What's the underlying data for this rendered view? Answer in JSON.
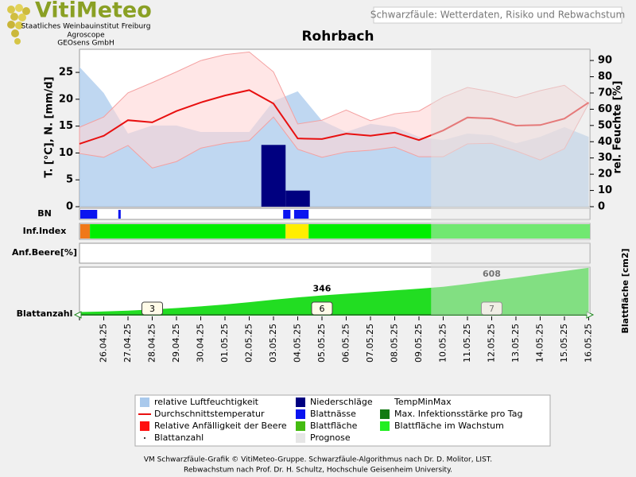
{
  "header": {
    "logo": "VitiMeteo",
    "lines": [
      "Staatliches Weinbauinstitut Freiburg",
      "Agroscope",
      "GEOsens GmbH"
    ],
    "subtitle": "Schwarzfäule: Wetterdaten, Risiko und Rebwachstum"
  },
  "chart_data": [
    {
      "type": "combo",
      "title": "Rohrbach",
      "categories": [
        null,
        "26.04.25",
        "27.04.25",
        "28.04.25",
        "29.04.25",
        "30.04.25",
        "01.05.25",
        "02.05.25",
        "03.05.25",
        "04.05.25",
        "05.05.25",
        "06.05.25",
        "07.05.25",
        "08.05.25",
        "09.05.25",
        "10.05.25",
        "11.05.25",
        "12.05.25",
        "13.05.25",
        "14.05.25",
        "15.05.25",
        "16.05.25"
      ],
      "xlim": [
        0,
        21.05
      ],
      "ylabel": "T. [°C], N. [mm/d]",
      "ylim": [
        0,
        29.3
      ],
      "yticks": [
        0,
        5,
        10,
        15,
        20,
        25
      ],
      "y2label": "rel. Feuchte [%]",
      "y2lim": [
        0,
        96.9
      ],
      "y2ticks": [
        0,
        10,
        20,
        30,
        40,
        50,
        60,
        70,
        80,
        90
      ],
      "humidity": {
        "color": "#a9c9ec",
        "axis": "y2",
        "values": [
          86,
          70,
          45,
          50,
          50,
          46,
          46,
          46,
          65,
          71,
          53,
          46,
          51,
          49,
          43,
          41,
          45,
          44,
          39,
          43,
          49,
          43
        ]
      },
      "tminmax": {
        "color": "#f4a0a0",
        "max": [
          14.8,
          16.7,
          21.2,
          23.1,
          25.1,
          27.2,
          28.3,
          28.8,
          25.1,
          15.4,
          16.1,
          18,
          16,
          17.3,
          17.8,
          20.4,
          22.2,
          21.4,
          20.3,
          21.6,
          22.6,
          19.2
        ],
        "min": [
          9.9,
          9.2,
          11.4,
          7.2,
          8.4,
          10.9,
          11.8,
          12.3,
          16.7,
          10.7,
          9.2,
          10.2,
          10.5,
          11.1,
          9.3,
          9.3,
          11.7,
          11.8,
          10.4,
          8.7,
          10.8,
          19.2
        ]
      },
      "temperature": {
        "color": "#e81010",
        "values": [
          11.7,
          13.2,
          16.1,
          15.7,
          17.8,
          19.4,
          20.7,
          21.7,
          19.2,
          12.7,
          12.6,
          13.6,
          13.2,
          13.8,
          12.4,
          14.2,
          16.6,
          16.4,
          15.1,
          15.2,
          16.4,
          19.4
        ]
      },
      "precipitation": {
        "color": "#000080",
        "values": [
          0,
          0,
          0,
          0,
          0,
          0,
          0,
          0,
          11.5,
          3,
          0,
          0,
          0,
          0,
          0,
          0,
          0,
          0,
          0,
          0,
          0,
          0
        ]
      }
    },
    {
      "type": "timeline",
      "label": "BN",
      "color": "#0a14f0",
      "periods": [
        [
          0.03,
          0.73
        ],
        [
          1.6,
          1.7
        ],
        [
          8.4,
          8.7
        ],
        [
          8.85,
          9.45
        ]
      ]
    },
    {
      "type": "segments",
      "label": "Inf.Index",
      "segments": [
        {
          "from": 0.03,
          "to": 0.43,
          "color": "#f07818"
        },
        {
          "from": 0.43,
          "to": 8.5,
          "color": "#00ee00"
        },
        {
          "from": 8.5,
          "to": 9.45,
          "color": "#ffee00"
        },
        {
          "from": 9.45,
          "to": 21.05,
          "color": "#00ee00"
        }
      ]
    },
    {
      "type": "empty",
      "label": "Anf.Beere[%]"
    },
    {
      "type": "area",
      "label": "Blattanzahl",
      "ylabel": "Blattfläche [cm2]",
      "color": "#22dd22",
      "ylim": [
        0,
        850
      ],
      "values": [
        50,
        60,
        75,
        95,
        120,
        150,
        185,
        225,
        270,
        310,
        346,
        375,
        405,
        435,
        465,
        500,
        550,
        608,
        660,
        720,
        780,
        840
      ],
      "labels_at": [
        "05.05.25",
        "12.05.25"
      ],
      "leaf_count": {
        "x": [
          "28.04.25",
          "05.05.25",
          "12.05.25"
        ],
        "values": [
          3,
          6,
          7
        ]
      }
    }
  ],
  "forecast": {
    "from": 14.5
  },
  "legend": [
    {
      "name": "relative Luftfeuchtigkeit",
      "color": "#a9c9ec",
      "kind": "box"
    },
    {
      "name": "Durchschnittstemperatur",
      "color": "#e81010",
      "kind": "line"
    },
    {
      "name": "Relative Anfälligkeit der Beere",
      "color": "#ff1010",
      "kind": "box"
    },
    {
      "name": "Blattanzahl",
      "color": "#000000",
      "kind": "dot"
    },
    {
      "name": "Niederschläge",
      "color": "#000080",
      "kind": "box"
    },
    {
      "name": "Blattnässe",
      "color": "#0a14f0",
      "kind": "box"
    },
    {
      "name": "Blattfläche",
      "color": "#44bb11",
      "kind": "box"
    },
    {
      "name": "Prognose",
      "color": "#e6e6e6",
      "kind": "box"
    },
    {
      "name": "TempMinMax",
      "color": "#ffffff",
      "kind": "none"
    },
    {
      "name": "Max. Infektionsstärke pro Tag",
      "color": "#127a12",
      "kind": "box"
    },
    {
      "name": "Blattfläche im Wachstum",
      "color": "#22ee22",
      "kind": "box"
    }
  ],
  "footer": [
    "VM Schwarzfäule-Grafik © VitiMeteo-Gruppe. Schwarzfäule-Algorithmus nach Dr. D. Molitor, LIST.",
    "Rebwachstum nach Prof. Dr. H. Schultz, Hochschule Geisenheim University."
  ]
}
